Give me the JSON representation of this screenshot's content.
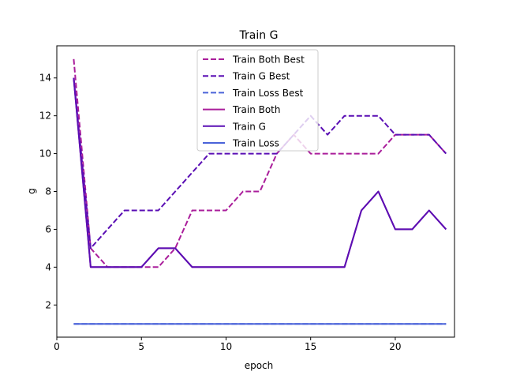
{
  "chart_data": {
    "type": "line",
    "title": "Train G",
    "xlabel": "epoch",
    "ylabel": "g",
    "xlim": [
      0,
      23.5
    ],
    "ylim": [
      0.3,
      15.7
    ],
    "xticks": [
      0,
      5,
      10,
      15,
      20
    ],
    "yticks": [
      2,
      4,
      6,
      8,
      10,
      12,
      14
    ],
    "grid": false,
    "legend_position": "top-center",
    "x": [
      1,
      2,
      3,
      4,
      5,
      6,
      7,
      8,
      9,
      10,
      11,
      12,
      13,
      14,
      15,
      16,
      17,
      18,
      19,
      20,
      21,
      22,
      23
    ],
    "series": [
      {
        "name": "Train Both Best",
        "color": "#aa1e9b",
        "dash": "dashed",
        "values": [
          15,
          5,
          4,
          4,
          4,
          4,
          5,
          7,
          7,
          7,
          8,
          8,
          10,
          11,
          10,
          10,
          10,
          10,
          10,
          11,
          11,
          11,
          10
        ]
      },
      {
        "name": "Train G Best",
        "color": "#5a0eb4",
        "dash": "dashed",
        "values": [
          14,
          5,
          6,
          7,
          7,
          7,
          8,
          9,
          10,
          10,
          10,
          10,
          10,
          11,
          12,
          11,
          12,
          12,
          12,
          11,
          11,
          11,
          10
        ]
      },
      {
        "name": "Train Loss Best",
        "color": "#4a63d9",
        "dash": "dashed",
        "values": [
          1,
          1,
          1,
          1,
          1,
          1,
          1,
          1,
          1,
          1,
          1,
          1,
          1,
          1,
          1,
          1,
          1,
          1,
          1,
          1,
          1,
          1,
          1
        ]
      },
      {
        "name": "Train Both",
        "color": "#aa1e9b",
        "dash": "solid",
        "values": [
          14,
          4,
          4,
          4,
          4,
          5,
          5,
          4,
          4,
          4,
          4,
          4,
          4,
          4,
          4,
          4,
          4,
          7,
          8,
          6,
          6,
          7,
          6
        ]
      },
      {
        "name": "Train G",
        "color": "#5a0eb4",
        "dash": "solid",
        "values": [
          14,
          4,
          4,
          4,
          4,
          5,
          5,
          4,
          4,
          4,
          4,
          4,
          4,
          4,
          4,
          4,
          4,
          7,
          8,
          6,
          6,
          7,
          6
        ]
      },
      {
        "name": "Train Loss",
        "color": "#4a63d9",
        "dash": "solid",
        "values": [
          1,
          1,
          1,
          1,
          1,
          1,
          1,
          1,
          1,
          1,
          1,
          1,
          1,
          1,
          1,
          1,
          1,
          1,
          1,
          1,
          1,
          1,
          1
        ]
      }
    ]
  }
}
